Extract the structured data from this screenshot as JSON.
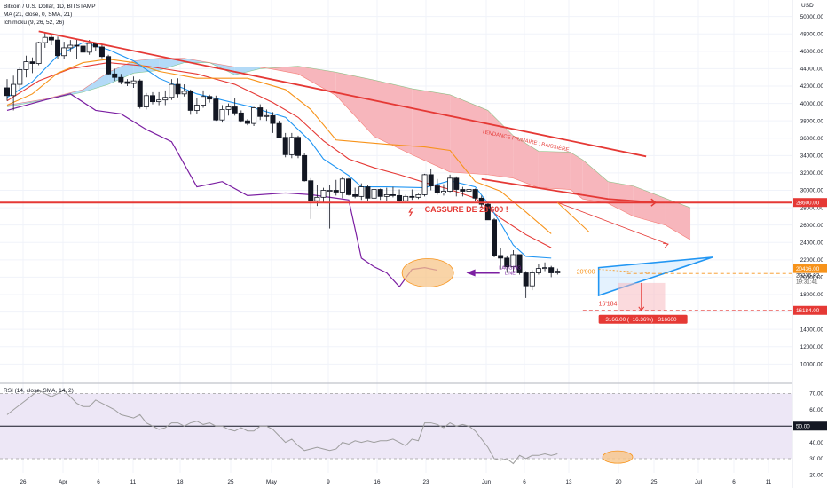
{
  "header": {
    "symbol": "Bitcoin / U.S. Dollar, 1D, BITSTAMP",
    "ma_legend": "MA (21, close, 0, SMA, 21)",
    "ichimoku_legend": "Ichimoku (9, 26, 52, 26)",
    "rsi_legend": "RSI (14, close, SMA, 14, 2)"
  },
  "colors": {
    "up": "#ffffff",
    "down": "#131722",
    "ma": "#f7931a",
    "tenkan": "#2196f3",
    "kijun": "#e53935",
    "lagging": "#7b1fa2",
    "cloud_bull": "#b3daf7",
    "cloud_bear": "#f7b6bc",
    "accent_red": "#e53935",
    "rsi_line": "#9e9e9e",
    "rsi_band": "#ede7f6",
    "oval": "#f7c58a"
  },
  "chart_data": {
    "type": "candlestick",
    "price_axis": {
      "unit": "USD",
      "ylim": [
        8500,
        51500
      ],
      "ticks": [
        "50000.00",
        "48000.00",
        "46000.00",
        "44000.00",
        "42000.00",
        "40000.00",
        "38000.00",
        "36000.00",
        "34000.00",
        "32000.00",
        "30000.00",
        "28000.00",
        "26000.00",
        "24000.00",
        "22000.00",
        "20000.00",
        "18000.00",
        "16000.00",
        "14000.00",
        "12000.00",
        "10000.00"
      ]
    },
    "x_axis_labels": [
      "26",
      "Apr",
      "6",
      "11",
      "18",
      "25",
      "May",
      "9",
      "16",
      "23",
      "Jun",
      "6",
      "13",
      "20",
      "25",
      "Jul",
      "6",
      "11"
    ],
    "candles": [
      [
        41800,
        42800,
        40300,
        40900
      ],
      [
        40900,
        43200,
        39200,
        42200
      ],
      [
        42200,
        44200,
        41600,
        43900
      ],
      [
        43900,
        45500,
        43000,
        44800
      ],
      [
        44800,
        45300,
        43500,
        44600
      ],
      [
        44600,
        47100,
        44400,
        47000
      ],
      [
        47000,
        48200,
        46400,
        47600
      ],
      [
        47600,
        48000,
        46700,
        47300
      ],
      [
        47300,
        47700,
        45100,
        45500
      ],
      [
        45500,
        47100,
        45100,
        46400
      ],
      [
        46400,
        47300,
        45900,
        46700
      ],
      [
        46700,
        47400,
        45100,
        46600
      ],
      [
        46600,
        47100,
        45500,
        45900
      ],
      [
        45900,
        47300,
        45600,
        46900
      ],
      [
        46900,
        47000,
        46000,
        46500
      ],
      [
        46500,
        46800,
        45200,
        45400
      ],
      [
        45400,
        45600,
        43300,
        43400
      ],
      [
        43400,
        44000,
        42600,
        43000
      ],
      [
        43000,
        43400,
        42200,
        42500
      ],
      [
        42500,
        42800,
        42000,
        42300
      ],
      [
        42300,
        43100,
        41800,
        42600
      ],
      [
        42600,
        42800,
        39400,
        39600
      ],
      [
        39600,
        41200,
        39300,
        40900
      ],
      [
        40900,
        41300,
        39900,
        40200
      ],
      [
        40200,
        41300,
        39800,
        40400
      ],
      [
        40400,
        41500,
        39800,
        40700
      ],
      [
        40700,
        42800,
        40400,
        42200
      ],
      [
        42200,
        42900,
        40700,
        41100
      ],
      [
        41100,
        42200,
        40800,
        41400
      ],
      [
        41400,
        41600,
        38700,
        39200
      ],
      [
        39200,
        40600,
        38800,
        39800
      ],
      [
        39800,
        41500,
        39500,
        40800
      ],
      [
        40800,
        41000,
        40100,
        40500
      ],
      [
        40500,
        40900,
        38000,
        38100
      ],
      [
        38100,
        39800,
        37800,
        39300
      ],
      [
        39300,
        40000,
        38600,
        39600
      ],
      [
        39600,
        40600,
        38600,
        38900
      ],
      [
        38900,
        39200,
        37800,
        38000
      ],
      [
        38000,
        38200,
        37500,
        37700
      ],
      [
        37700,
        39600,
        37400,
        39500
      ],
      [
        39500,
        39900,
        38100,
        38500
      ],
      [
        38500,
        39300,
        38000,
        38600
      ],
      [
        38600,
        39000,
        36600,
        37700
      ],
      [
        37700,
        38000,
        36000,
        36100
      ],
      [
        36100,
        36600,
        33800,
        34100
      ],
      [
        34100,
        36600,
        33700,
        36100
      ],
      [
        36100,
        36300,
        33700,
        34000
      ],
      [
        34000,
        34300,
        31000,
        31100
      ],
      [
        31100,
        31400,
        26700,
        28800
      ],
      [
        28800,
        30600,
        28200,
        29200
      ],
      [
        29200,
        30300,
        28600,
        30000
      ],
      [
        30000,
        30600,
        25600,
        30000
      ],
      [
        30000,
        31200,
        29400,
        29800
      ],
      [
        29800,
        31500,
        29100,
        31300
      ],
      [
        31300,
        31400,
        29400,
        29500
      ],
      [
        29500,
        30300,
        29100,
        29300
      ],
      [
        29300,
        30800,
        28900,
        30400
      ],
      [
        30400,
        30600,
        28800,
        29100
      ],
      [
        29100,
        30300,
        28700,
        30100
      ],
      [
        30100,
        30200,
        28900,
        29300
      ],
      [
        29300,
        30300,
        28800,
        29500
      ],
      [
        29500,
        30400,
        29200,
        29400
      ],
      [
        29400,
        30100,
        28700,
        28800
      ],
      [
        28800,
        29500,
        28600,
        29300
      ],
      [
        29300,
        30100,
        28900,
        29200
      ],
      [
        29200,
        29600,
        29000,
        29500
      ],
      [
        29500,
        31900,
        29300,
        31800
      ],
      [
        31800,
        32400,
        30000,
        30500
      ],
      [
        30500,
        31300,
        29500,
        29700
      ],
      [
        29700,
        30700,
        29400,
        29900
      ],
      [
        29900,
        31800,
        29800,
        31400
      ],
      [
        31400,
        31600,
        29300,
        30100
      ],
      [
        30100,
        30400,
        29300,
        29900
      ],
      [
        29900,
        30300,
        29000,
        30100
      ],
      [
        30100,
        30200,
        28800,
        29100
      ],
      [
        29100,
        29400,
        28000,
        28400
      ],
      [
        28400,
        28600,
        26600,
        26600
      ],
      [
        26600,
        26800,
        22300,
        22500
      ],
      [
        22500,
        23400,
        20900,
        22200
      ],
      [
        22200,
        22500,
        20500,
        21200
      ],
      [
        21200,
        23100,
        20600,
        22600
      ],
      [
        22600,
        22600,
        20300,
        20500
      ],
      [
        20500,
        20700,
        17600,
        19000
      ],
      [
        19000,
        20800,
        18500,
        20500
      ],
      [
        20500,
        21500,
        20300,
        21000
      ],
      [
        21000,
        21700,
        20700,
        21100
      ],
      [
        21100,
        21300,
        20000,
        20500
      ],
      [
        20500,
        21000,
        20300,
        20700
      ]
    ],
    "ma21": [
      [
        0,
        39800
      ],
      [
        4,
        41100
      ],
      [
        8,
        43500
      ],
      [
        12,
        44700
      ],
      [
        16,
        45100
      ],
      [
        20,
        44700
      ],
      [
        24,
        43700
      ],
      [
        30,
        42900
      ],
      [
        38,
        42900
      ],
      [
        44,
        41600
      ],
      [
        48,
        39300
      ],
      [
        52,
        35800
      ],
      [
        60,
        35300
      ],
      [
        66,
        35000
      ],
      [
        70,
        34600
      ],
      [
        74,
        31000
      ],
      [
        78,
        29900
      ],
      [
        82,
        27500
      ],
      [
        86,
        25000
      ]
    ],
    "tenkan": [
      [
        0,
        40700
      ],
      [
        4,
        42500
      ],
      [
        8,
        45500
      ],
      [
        12,
        47000
      ],
      [
        16,
        46200
      ],
      [
        20,
        44900
      ],
      [
        24,
        42900
      ],
      [
        30,
        41100
      ],
      [
        38,
        39700
      ],
      [
        44,
        38400
      ],
      [
        48,
        35600
      ],
      [
        50,
        33600
      ],
      [
        54,
        31700
      ],
      [
        56,
        30400
      ],
      [
        60,
        30400
      ],
      [
        66,
        30300
      ],
      [
        70,
        31100
      ],
      [
        74,
        30400
      ],
      [
        76,
        28500
      ],
      [
        78,
        26200
      ],
      [
        80,
        23700
      ],
      [
        82,
        22400
      ],
      [
        86,
        22200
      ]
    ],
    "kijun": [
      [
        0,
        40300
      ],
      [
        5,
        42600
      ],
      [
        10,
        44000
      ],
      [
        16,
        44700
      ],
      [
        22,
        44300
      ],
      [
        30,
        43400
      ],
      [
        36,
        42200
      ],
      [
        42,
        40100
      ],
      [
        46,
        38400
      ],
      [
        50,
        35700
      ],
      [
        54,
        33600
      ],
      [
        58,
        32600
      ],
      [
        62,
        31800
      ],
      [
        66,
        30900
      ],
      [
        70,
        30100
      ],
      [
        74,
        29100
      ],
      [
        78,
        26800
      ],
      [
        82,
        24900
      ],
      [
        86,
        23400
      ]
    ],
    "lagging": [
      [
        0,
        39200
      ],
      [
        6,
        40400
      ],
      [
        10,
        41100
      ],
      [
        14,
        39200
      ],
      [
        18,
        38800
      ],
      [
        22,
        37000
      ],
      [
        26,
        35600
      ],
      [
        30,
        30400
      ],
      [
        34,
        31000
      ],
      [
        38,
        29400
      ],
      [
        44,
        29700
      ],
      [
        48,
        29500
      ],
      [
        54,
        28900
      ],
      [
        56,
        22200
      ],
      [
        58,
        21200
      ],
      [
        60,
        20500
      ],
      [
        62,
        18900
      ],
      [
        64,
        20900
      ],
      [
        66,
        21100
      ],
      [
        68,
        20800
      ]
    ],
    "cloud": [
      [
        0,
        39600,
        39800
      ],
      [
        6,
        40400,
        40500
      ],
      [
        12,
        41300,
        41600
      ],
      [
        16,
        42200,
        43600
      ],
      [
        20,
        43500,
        44900
      ],
      [
        24,
        43800,
        45200
      ],
      [
        28,
        44700,
        45200
      ],
      [
        32,
        44700,
        44700
      ],
      [
        36,
        43300,
        44200
      ],
      [
        40,
        44000,
        44200
      ],
      [
        46,
        44300,
        43400
      ],
      [
        52,
        43600,
        40900
      ],
      [
        58,
        42700,
        36200
      ],
      [
        64,
        41700,
        34100
      ],
      [
        70,
        41000,
        32100
      ],
      [
        76,
        39200,
        31800
      ],
      [
        80,
        36300,
        31400
      ],
      [
        84,
        34500,
        30300
      ],
      [
        89,
        34400,
        30100
      ],
      [
        91,
        33500,
        29000
      ],
      [
        95,
        31000,
        28500
      ],
      [
        99,
        30500,
        27000
      ],
      [
        104,
        29100,
        26000
      ],
      [
        108,
        28000,
        24300
      ]
    ],
    "annotations": {
      "primary_trend": "TENDANCE PRIMAIRE : BAISSIÈRE",
      "break_label": "CASSURE DE 28'600 !",
      "lagging_label": "LAGGING LINE",
      "support_label": "20'900",
      "target_label": "16'184",
      "measure_label": "−3166.00 (−16.36%) −316600"
    },
    "price_tags": {
      "level_28600": "28600.00",
      "current": "20235.92",
      "countdown": "19:31:41",
      "high_tag": "20436.00",
      "target": "16184.00"
    },
    "rsi": {
      "ylim": [
        24,
        73
      ],
      "ticks": [
        "70.00",
        "60.00",
        "50.00",
        "40.00",
        "30.00",
        "20.00"
      ],
      "values": [
        57,
        60,
        63,
        66,
        69,
        72,
        70,
        68,
        70,
        72,
        68,
        64,
        62,
        62,
        66,
        64,
        62,
        60,
        57,
        56,
        55,
        57,
        52,
        50,
        48,
        49,
        52,
        52,
        50,
        52,
        53,
        51,
        52,
        50,
        50,
        48,
        47,
        49,
        47,
        47,
        50,
        50,
        48,
        44,
        40,
        42,
        38,
        35,
        36,
        37,
        36,
        35,
        36,
        40,
        39,
        41,
        40,
        41,
        40,
        41,
        41,
        42,
        40,
        38,
        42,
        41,
        52,
        52,
        51,
        49,
        52,
        50,
        51,
        50,
        47,
        42,
        37,
        30,
        29,
        30,
        27,
        32,
        30,
        32,
        32,
        33,
        32,
        33
      ],
      "last_label": "50.00"
    }
  }
}
